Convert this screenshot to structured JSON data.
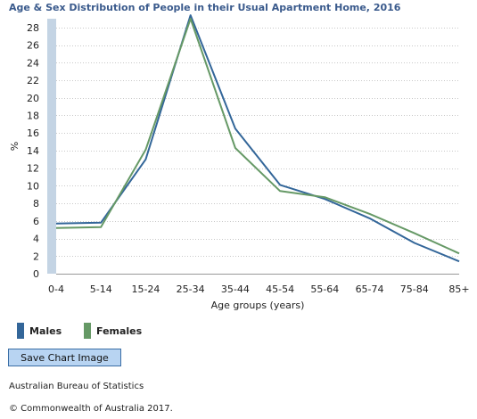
{
  "chart_data": {
    "type": "line",
    "title": "Age & Sex Distribution of People in their Usual Apartment Home, 2016",
    "xlabel": "Age groups (years)",
    "ylabel": "%",
    "categories": [
      "0-4",
      "5-14",
      "15-24",
      "25-34",
      "35-44",
      "45-54",
      "55-64",
      "65-74",
      "75-84",
      "85+"
    ],
    "ylim": [
      0,
      29
    ],
    "yticks": [
      0,
      2,
      4,
      6,
      8,
      10,
      12,
      14,
      16,
      18,
      20,
      22,
      24,
      26,
      28
    ],
    "grid": true,
    "legend_position": "bottom-left",
    "series": [
      {
        "name": "Males",
        "color": "#336699",
        "values": [
          5.7,
          5.8,
          13.0,
          29.4,
          16.5,
          10.1,
          8.5,
          6.3,
          3.5,
          1.4
        ]
      },
      {
        "name": "Females",
        "color": "#669966",
        "values": [
          5.2,
          5.3,
          14.1,
          29.0,
          14.3,
          9.4,
          8.7,
          6.8,
          4.6,
          2.3
        ]
      }
    ]
  },
  "save_button_label": "Save Chart Image",
  "source": "Australian Bureau of Statistics",
  "copyright": "© Commonwealth of Australia 2017."
}
